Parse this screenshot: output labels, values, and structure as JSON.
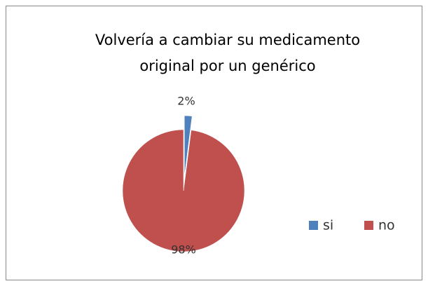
{
  "chart_data": {
    "type": "pie",
    "title": [
      "Volvería a cambiar su medicamento",
      "original por un genérico"
    ],
    "categories": [
      "si",
      "no"
    ],
    "values": [
      2,
      98
    ],
    "value_labels": [
      "2%",
      "98%"
    ],
    "colors": [
      "#4f81bd",
      "#c0504d"
    ],
    "legend": "right"
  }
}
